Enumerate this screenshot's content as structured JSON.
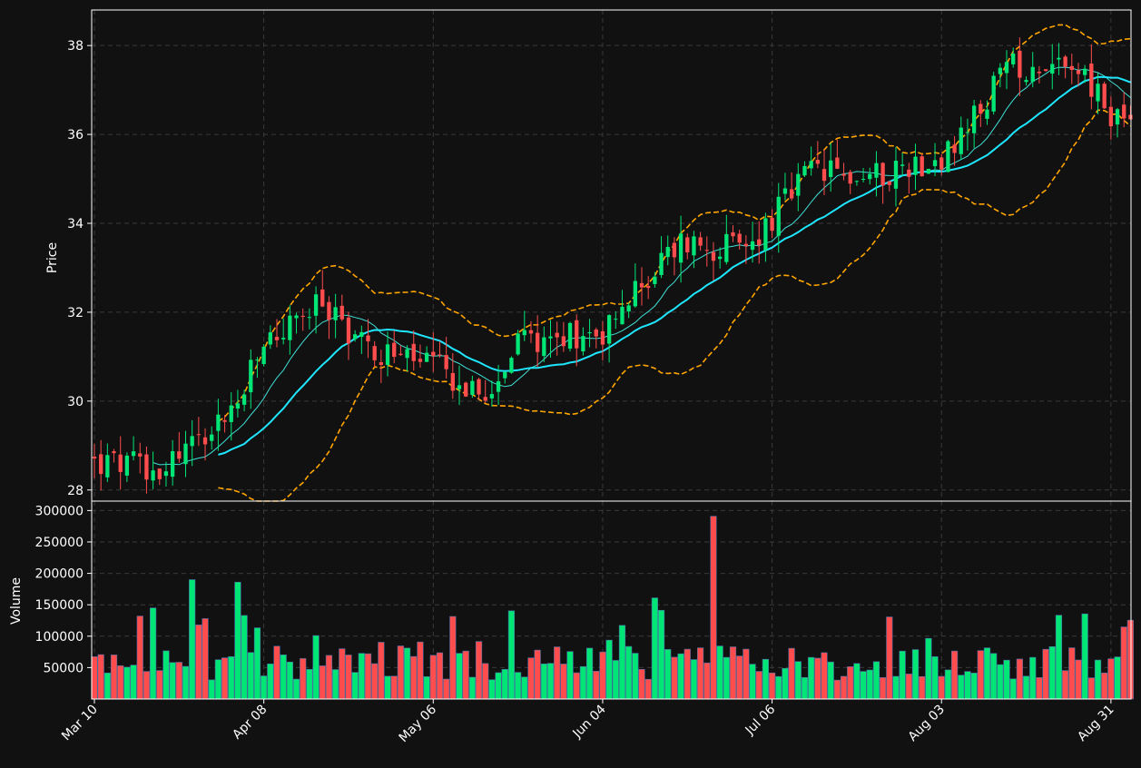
{
  "colors": {
    "background": "#111111",
    "up": "#00e676",
    "down": "#ff4d4d",
    "bollinger": "#ffa500",
    "ma_fast": "#3fe0d6",
    "ma_slow": "#1fe6ff",
    "grid": "#3a3a3a",
    "axis": "#ffffff"
  },
  "chart_data": [
    {
      "type": "candlestick",
      "panel": "price",
      "ylabel": "Price",
      "ylim": [
        27.75,
        38.8
      ],
      "yticks": [
        "28",
        "30",
        "32",
        "34",
        "36",
        "38"
      ],
      "x_start_date": "2025-03-10",
      "grid": true,
      "indicators": [
        "ma_fast",
        "ma_slow",
        "bollinger_upper",
        "bollinger_lower"
      ]
    },
    {
      "type": "bar",
      "panel": "volume",
      "ylabel": "Volume",
      "ylim": [
        0,
        315000
      ],
      "yticks": [
        "50000",
        "100000",
        "150000",
        "200000",
        "250000",
        "300000"
      ],
      "xticks": [
        "Mar 10",
        "Apr 08",
        "May 06",
        "Jun 04",
        "Jul 06",
        "Aug 03",
        "Aug 31"
      ],
      "grid": true
    }
  ]
}
